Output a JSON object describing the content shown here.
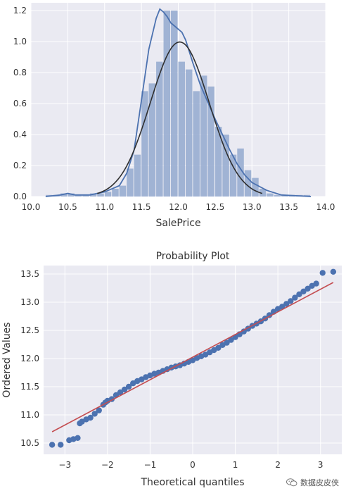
{
  "chart_data": [
    {
      "type": "histogram",
      "title": "",
      "xlabel": "SalePrice",
      "ylabel": "",
      "xlim": [
        10.0,
        14.0
      ],
      "ylim": [
        0.0,
        1.25
      ],
      "grid": true,
      "xticks": [
        "10.0",
        "10.5",
        "11.0",
        "11.5",
        "12.0",
        "12.5",
        "13.0",
        "13.5",
        "14.0"
      ],
      "yticks": [
        "0.0",
        "0.2",
        "0.4",
        "0.6",
        "0.8",
        "1.0",
        "1.2"
      ],
      "bin_width": 0.1,
      "bin_starts": [
        10.2,
        10.3,
        10.4,
        10.5,
        10.6,
        10.7,
        10.8,
        10.9,
        11.0,
        11.1,
        11.2,
        11.3,
        11.4,
        11.5,
        11.6,
        11.7,
        11.8,
        11.9,
        12.0,
        12.1,
        12.2,
        12.3,
        12.4,
        12.5,
        12.6,
        12.7,
        12.8,
        12.9,
        13.0,
        13.1,
        13.2,
        13.3,
        13.4,
        13.5,
        13.6,
        13.7
      ],
      "bin_values": [
        0.01,
        0.01,
        0.02,
        0.02,
        0.01,
        0.01,
        0.02,
        0.02,
        0.03,
        0.05,
        0.07,
        0.18,
        0.27,
        0.68,
        0.73,
        0.87,
        1.2,
        1.2,
        0.87,
        0.82,
        0.68,
        0.78,
        0.71,
        0.45,
        0.4,
        0.27,
        0.31,
        0.17,
        0.12,
        0.05,
        0.02,
        0.01,
        0.01,
        0.01,
        0.01,
        0.01
      ],
      "series": [
        {
          "kind": "kde",
          "x": [
            10.2,
            10.4,
            10.5,
            10.6,
            10.8,
            11.0,
            11.2,
            11.3,
            11.4,
            11.5,
            11.6,
            11.7,
            11.75,
            11.8,
            11.85,
            11.9,
            11.95,
            12.0,
            12.05,
            12.1,
            12.2,
            12.3,
            12.4,
            12.5,
            12.6,
            12.7,
            12.8,
            12.9,
            13.0,
            13.2,
            13.4,
            13.6,
            13.8
          ],
          "y": [
            0.0,
            0.01,
            0.02,
            0.01,
            0.01,
            0.03,
            0.07,
            0.15,
            0.3,
            0.62,
            0.95,
            1.15,
            1.21,
            1.19,
            1.16,
            1.12,
            1.1,
            1.08,
            1.06,
            1.01,
            0.86,
            0.72,
            0.61,
            0.5,
            0.4,
            0.3,
            0.21,
            0.14,
            0.09,
            0.04,
            0.01,
            0.005,
            0.0
          ]
        },
        {
          "kind": "normal_fit",
          "mean": 12.02,
          "sd": 0.4
        }
      ],
      "colors": {
        "bars": "#93a9cf",
        "kde": "#4c72b0",
        "fit": "#2f2f2f"
      }
    },
    {
      "type": "scatter",
      "title": "Probability Plot",
      "xlabel": "Theoretical quantiles",
      "ylabel": "Ordered Values",
      "xlim": [
        -3.5,
        3.5
      ],
      "ylim": [
        10.3,
        13.65
      ],
      "grid": true,
      "xticks": [
        "−3",
        "−2",
        "−1",
        "0",
        "1",
        "2",
        "3"
      ],
      "yticks": [
        "10.5",
        "11.0",
        "11.5",
        "12.0",
        "12.5",
        "13.0",
        "13.5"
      ],
      "points": {
        "x": [
          -3.3,
          -3.1,
          -2.9,
          -2.8,
          -2.7,
          -2.65,
          -2.6,
          -2.5,
          -2.4,
          -2.3,
          -2.2,
          -2.1,
          -2.05,
          -2.0,
          -1.9,
          -1.8,
          -1.7,
          -1.6,
          -1.5,
          -1.4,
          -1.3,
          -1.2,
          -1.1,
          -1.0,
          -0.9,
          -0.8,
          -0.7,
          -0.6,
          -0.5,
          -0.4,
          -0.3,
          -0.2,
          -0.1,
          0.0,
          0.1,
          0.2,
          0.3,
          0.4,
          0.5,
          0.6,
          0.7,
          0.8,
          0.9,
          1.0,
          1.1,
          1.2,
          1.3,
          1.4,
          1.5,
          1.6,
          1.7,
          1.8,
          1.9,
          2.0,
          2.1,
          2.2,
          2.3,
          2.4,
          2.5,
          2.6,
          2.7,
          2.8,
          2.9,
          3.05,
          3.3
        ],
        "y": [
          10.47,
          10.47,
          10.55,
          10.57,
          10.59,
          10.85,
          10.88,
          10.92,
          10.95,
          11.02,
          11.08,
          11.18,
          11.22,
          11.25,
          11.28,
          11.35,
          11.4,
          11.45,
          11.5,
          11.56,
          11.6,
          11.63,
          11.67,
          11.7,
          11.73,
          11.75,
          11.78,
          11.81,
          11.84,
          11.86,
          11.88,
          11.91,
          11.94,
          11.97,
          12.01,
          12.04,
          12.07,
          12.11,
          12.15,
          12.19,
          12.24,
          12.28,
          12.33,
          12.38,
          12.43,
          12.48,
          12.53,
          12.58,
          12.62,
          12.66,
          12.71,
          12.77,
          12.83,
          12.88,
          12.92,
          12.97,
          13.02,
          13.08,
          13.14,
          13.19,
          13.24,
          13.29,
          13.33,
          13.52,
          13.54
        ]
      },
      "fit_line": {
        "x": [
          -3.3,
          3.3
        ],
        "y": [
          10.7,
          13.35
        ]
      },
      "colors": {
        "points": "#4c72b0",
        "line": "#c44e52"
      }
    }
  ],
  "watermark": {
    "text": "数据皮皮侠",
    "icon": "wechat-icon"
  },
  "colors": {
    "plot_bg": "#eaeaf2",
    "grid": "#ffffff",
    "text": "#333333"
  }
}
